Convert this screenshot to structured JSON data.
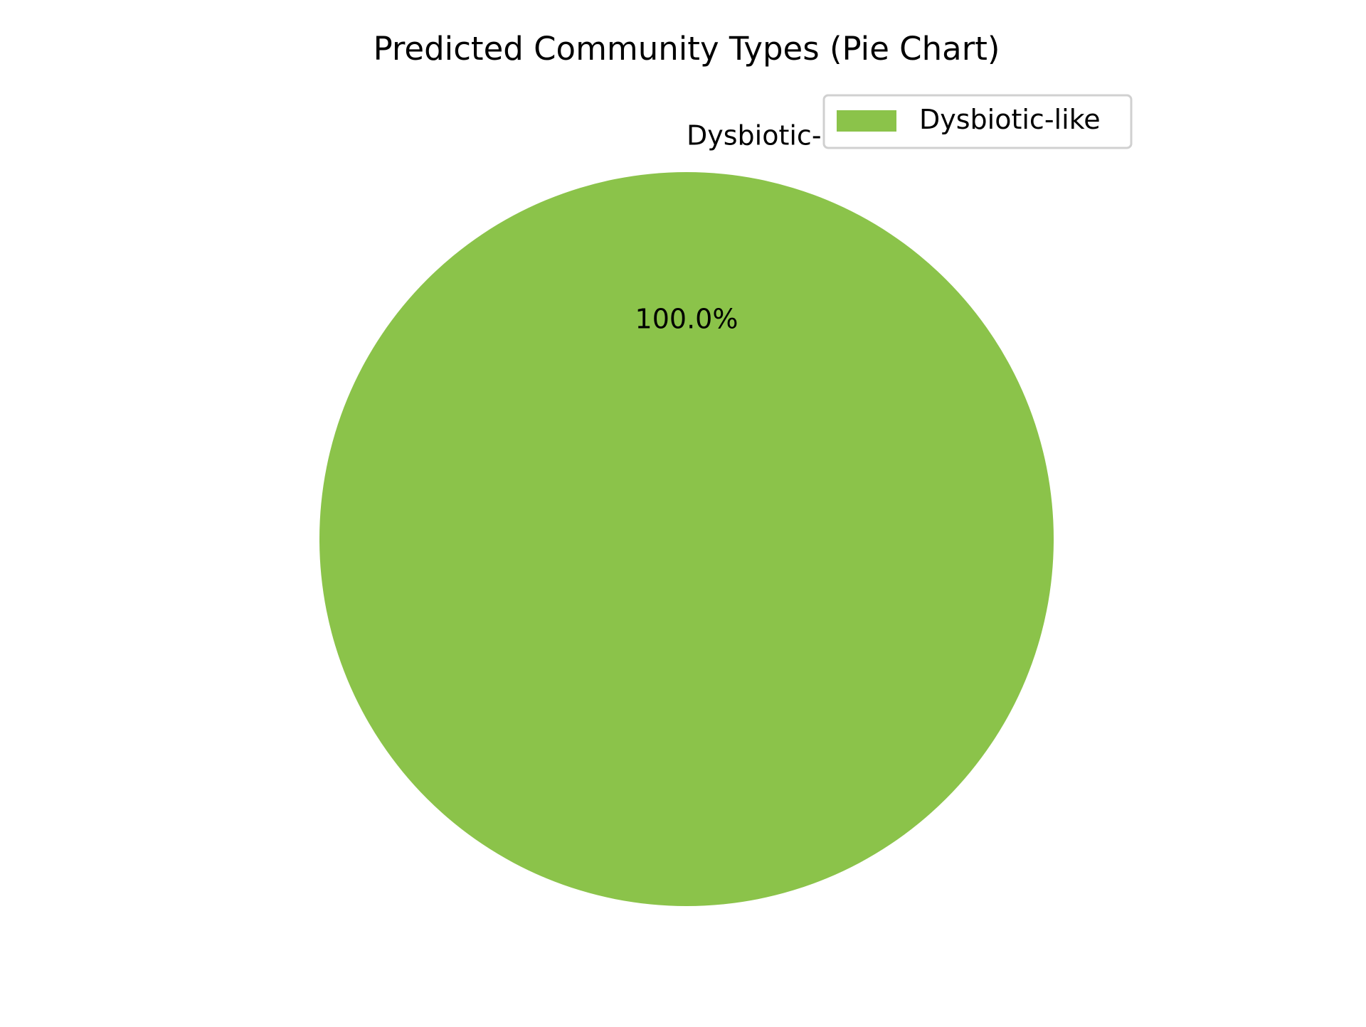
{
  "chart_data": {
    "type": "pie",
    "title": "Predicted Community Types (Pie Chart)",
    "slices": [
      {
        "label": "Dysbiotic-like",
        "value": 100.0,
        "percent_label": "100.0%",
        "color": "#8bc34a"
      }
    ],
    "legend": {
      "placement": "top-right",
      "entries": [
        "Dysbiotic-like"
      ]
    }
  }
}
